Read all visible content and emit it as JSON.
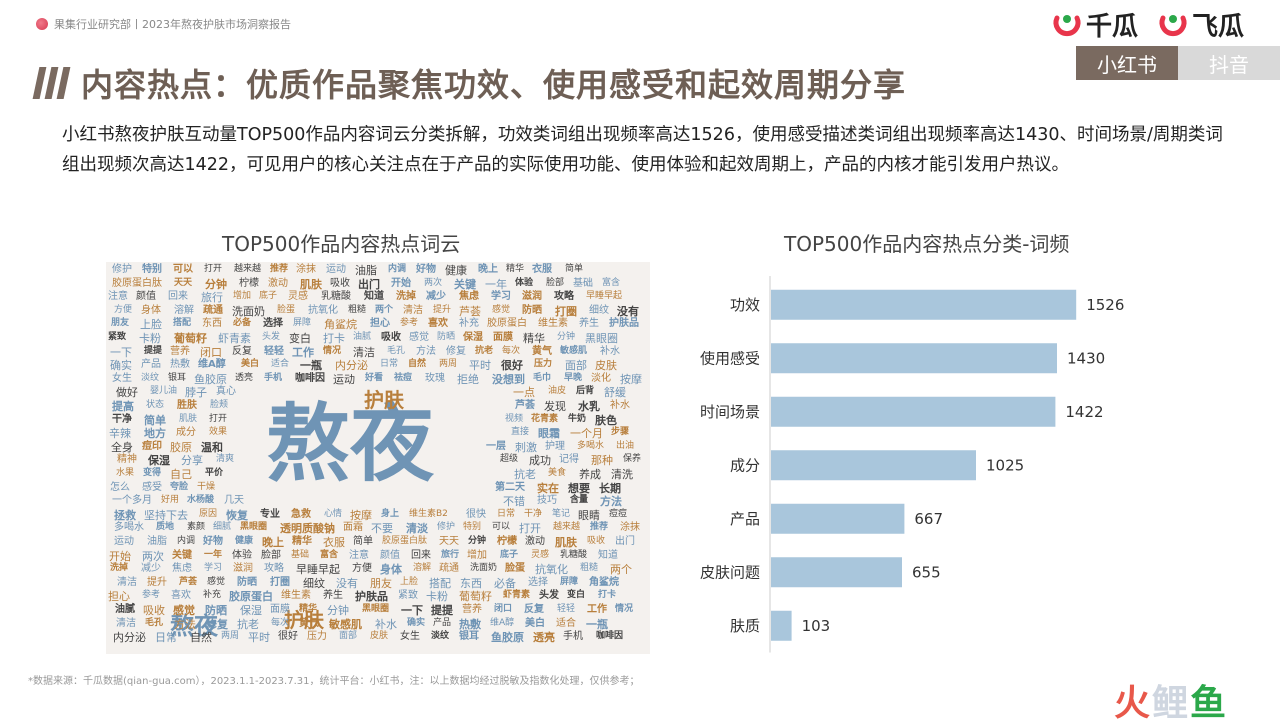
{
  "header": {
    "breadcrumb": "果集行业研究部丨2023年熬夜护肤市场洞察报告",
    "brand_1": "千瓜",
    "brand_2": "飞瓜",
    "tabs": [
      {
        "label": "小红书",
        "active": true
      },
      {
        "label": "抖音",
        "active": false
      }
    ]
  },
  "page": {
    "title": "内容热点：优质作品聚焦功效、使用感受和起效周期分享",
    "description": "小红书熬夜护肤互动量TOP500作品内容词云分类拆解，功效类词组出现频率高达1526，使用感受描述类词组出现频率高达1430、时间场景/周期类词组出现频次高达1422，可见用户的核心关注点在于产品的实际使用功能、使用体验和起效周期上，产品的内核才能引发用户热议。",
    "footnote": "*数据来源：千瓜数据(qian-gua.com），2023.1.1-2023.7.31，统计平台：小红书，注：以上数据均经过脱敏及指数化处理，仅供参考；",
    "watermark_logo": [
      "火",
      "鲤",
      "鱼"
    ]
  },
  "colors": {
    "accent": "#7a6a60",
    "bar": "#a9c6dc",
    "cloud_blue": "#6f94b5",
    "cloud_brown": "#b87f3c"
  },
  "word_cloud": {
    "title": "TOP500作品内容热点词云",
    "main_words": [
      "熬夜",
      "护肤",
      "熬夜",
      "护肤"
    ],
    "words": [
      "修护",
      "特别",
      "可以",
      "打开",
      "越来越",
      "推荐",
      "涂抹",
      "运动",
      "油脂",
      "内调",
      "好物",
      "健康",
      "晚上",
      "精华",
      "衣服",
      "简单",
      "胶原蛋白肽",
      "天天",
      "分钟",
      "柠檬",
      "激动",
      "肌肤",
      "吸收",
      "出门",
      "开始",
      "两次",
      "关键",
      "一年",
      "体验",
      "脸部",
      "基础",
      "富含",
      "注意",
      "颜值",
      "回来",
      "旅行",
      "增加",
      "底子",
      "灵感",
      "乳糖酸",
      "知道",
      "洗掉",
      "减少",
      "焦虑",
      "学习",
      "滋润",
      "攻略",
      "早睡早起",
      "方便",
      "身体",
      "溶解",
      "疏通",
      "洗面奶",
      "脸蛋",
      "抗氧化",
      "粗糙",
      "两个",
      "清洁",
      "提升",
      "芦荟",
      "感觉",
      "防晒",
      "打圈",
      "细纹",
      "没有",
      "朋友",
      "上脸",
      "搭配",
      "东西",
      "必备",
      "选择",
      "屏障",
      "角鲨烷",
      "担心",
      "参考",
      "喜欢",
      "补充",
      "胶原蛋白",
      "维生素",
      "养生",
      "护肤品",
      "紧致",
      "卡粉",
      "葡萄籽",
      "虾青素",
      "头发",
      "变白",
      "打卡",
      "油腻",
      "吸收",
      "感觉",
      "防晒",
      "保湿",
      "面膜",
      "精华",
      "分钟",
      "黑眼圈",
      "一下",
      "提提",
      "营养",
      "闭口",
      "反复",
      "轻轻",
      "工作",
      "情况",
      "清洁",
      "毛孔",
      "方法",
      "修复",
      "抗老",
      "每次",
      "黄气",
      "敏感肌",
      "补水",
      "确实",
      "产品",
      "热敷",
      "维A醇",
      "美白",
      "适合",
      "一瓶",
      "内分泌",
      "日常",
      "自然",
      "两周",
      "平时",
      "很好",
      "压力",
      "面部",
      "皮肤",
      "女生",
      "淡纹",
      "银耳",
      "鱼胶原",
      "透亮",
      "手机",
      "咖啡因",
      "运动",
      "好看",
      "祛痘",
      "玫瑰",
      "拒绝",
      "没想到",
      "毛巾",
      "早晚",
      "淡化",
      "按摩",
      "做好",
      "婴儿油",
      "脖子",
      "真心",
      "一点",
      "油皮",
      "后背",
      "舒缓",
      "提高",
      "状态",
      "胜肤",
      "脸颊",
      "芦荟",
      "发现",
      "水乳",
      "补水",
      "干净",
      "简单",
      "肌肤",
      "打开",
      "视频",
      "花青素",
      "牛奶",
      "肤色",
      "辛辣",
      "地方",
      "成分",
      "效果",
      "直接",
      "眼霜",
      "一个月",
      "步骤",
      "全身",
      "痘印",
      "胶原",
      "温和",
      "一层",
      "刺激",
      "护理",
      "多喝水",
      "出油",
      "精神",
      "保湿",
      "分享",
      "清爽",
      "超级",
      "成功",
      "记得",
      "那种",
      "保养",
      "水果",
      "变得",
      "自己",
      "平价",
      "抗老",
      "美食",
      "养成",
      "清洗",
      "怎么",
      "感受",
      "夸脸",
      "干燥",
      "第二天",
      "实在",
      "想要",
      "长期",
      "一个多月",
      "好用",
      "水杨酸",
      "几天",
      "不错",
      "技巧",
      "含量",
      "方法",
      "拯救",
      "坚持下去",
      "原因",
      "恢复",
      "专业",
      "急救",
      "心情",
      "按摩",
      "身上",
      "维生素B2",
      "很快",
      "日常",
      "干净",
      "笔记",
      "眼睛",
      "痘痘",
      "多喝水",
      "质地",
      "素颜",
      "细腻",
      "黑眼圈",
      "透明质酸钠",
      "面霜",
      "不要",
      "清淡"
    ]
  },
  "chart_data": {
    "type": "bar",
    "orientation": "horizontal",
    "title": "TOP500作品内容热点分类-词频",
    "categories": [
      "功效",
      "使用感受",
      "时间场景",
      "成分",
      "产品",
      "皮肤问题",
      "肤质"
    ],
    "values": [
      1526,
      1430,
      1422,
      1025,
      667,
      655,
      103
    ],
    "xlabel": "",
    "ylabel": "",
    "xlim": [
      0,
      1600
    ],
    "grid": false,
    "legend": "none"
  }
}
